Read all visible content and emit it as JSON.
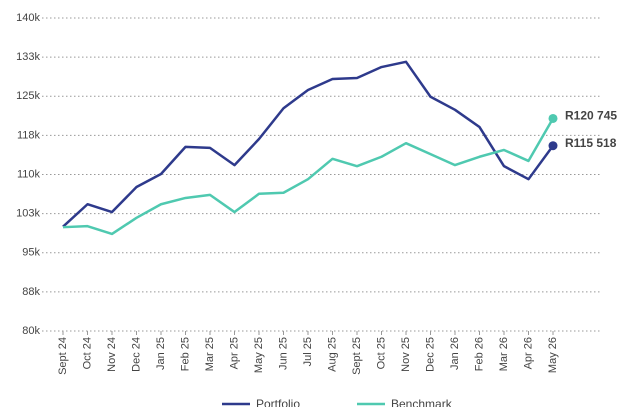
{
  "chart_data": {
    "type": "line",
    "categories": [
      "Sept 24",
      "Oct 24",
      "Nov 24",
      "Dec 24",
      "Jan 25",
      "Feb 25",
      "Mar 25",
      "Apr 25",
      "May 25",
      "Jun 25",
      "Jul 25",
      "Aug 25",
      "Sept 25",
      "Oct 25",
      "Nov 25",
      "Dec 25",
      "Jan 26",
      "Feb 26",
      "Mar 26",
      "Apr 26",
      "May 26"
    ],
    "series": [
      {
        "name": "Portfolio",
        "color": "#2e3a8c",
        "values": [
          100000,
          104300,
          102800,
          107600,
          110100,
          115300,
          115100,
          111800,
          116800,
          122700,
          126200,
          128300,
          128500,
          130600,
          131600,
          124900,
          122400,
          119100,
          111600,
          109100,
          115518
        ],
        "value_labels": [
          null,
          null,
          null,
          null,
          null,
          null,
          null,
          null,
          null,
          null,
          null,
          null,
          null,
          null,
          null,
          null,
          null,
          null,
          null,
          null,
          "R115 518"
        ]
      },
      {
        "name": "Benchmark",
        "color": "#4fc9b0",
        "values": [
          99900,
          100100,
          98600,
          101700,
          104300,
          105500,
          106100,
          102800,
          106300,
          106500,
          109100,
          113000,
          111600,
          113400,
          116000,
          113900,
          111800,
          113400,
          114700,
          112600,
          120745
        ],
        "value_labels": [
          null,
          null,
          null,
          null,
          null,
          null,
          null,
          null,
          null,
          null,
          null,
          null,
          null,
          null,
          null,
          null,
          null,
          null,
          null,
          null,
          "R120 745"
        ]
      }
    ],
    "ylim": [
      80000,
      140000
    ],
    "yticks": [
      {
        "value": 80000,
        "label": "80k"
      },
      {
        "value": 87500,
        "label": "88k"
      },
      {
        "value": 95000,
        "label": "95k"
      },
      {
        "value": 102500,
        "label": "103k"
      },
      {
        "value": 110000,
        "label": "110k"
      },
      {
        "value": 117500,
        "label": "118k"
      },
      {
        "value": 125000,
        "label": "125k"
      },
      {
        "value": 132500,
        "label": "133k"
      },
      {
        "value": 140000,
        "label": "140k"
      }
    ],
    "grid": true,
    "legend": "bottom"
  }
}
